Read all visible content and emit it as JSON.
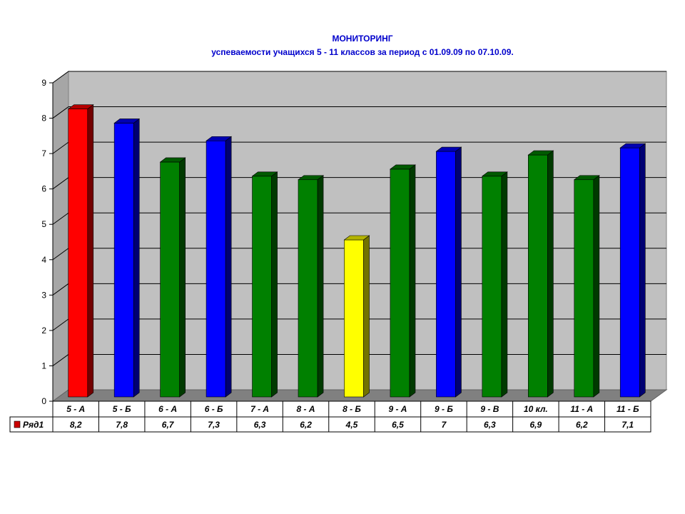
{
  "chart_data": {
    "type": "bar",
    "title": "МОНИТОРИНГ",
    "subtitle": "успеваемости учащихся 5 - 11 классов за период с 01.09.09 по 07.10.09.",
    "categories": [
      "5 - А",
      "5 - Б",
      "6 - А",
      "6 - Б",
      "7 - А",
      "8 - А",
      "8 - Б",
      "9 - А",
      "9 - Б",
      "9 - В",
      "10 кл.",
      "11 - А",
      "11 - Б"
    ],
    "series": [
      {
        "name": "Ряд1",
        "values": [
          8.2,
          7.8,
          6.7,
          7.3,
          6.3,
          6.2,
          4.5,
          6.5,
          7,
          6.3,
          6.9,
          6.2,
          7.1
        ]
      }
    ],
    "value_labels": [
      "8,2",
      "7,8",
      "6,7",
      "7,3",
      "6,3",
      "6,2",
      "4,5",
      "6,5",
      "7",
      "6,3",
      "6,9",
      "6,2",
      "7,1"
    ],
    "bar_colors": [
      "#ff0000",
      "#0000ff",
      "#008000",
      "#0000ff",
      "#008000",
      "#008000",
      "#ffff00",
      "#008000",
      "#0000ff",
      "#008000",
      "#008000",
      "#008000",
      "#0000ff"
    ],
    "ylim": [
      0,
      9
    ],
    "yticks": [
      "0",
      "1",
      "2",
      "3",
      "4",
      "5",
      "6",
      "7",
      "8",
      "9"
    ],
    "grid": true,
    "legend": "data-table",
    "legend_color": "#cc0000",
    "background_color": "#c0c0c0",
    "floor_color": "#808080"
  }
}
